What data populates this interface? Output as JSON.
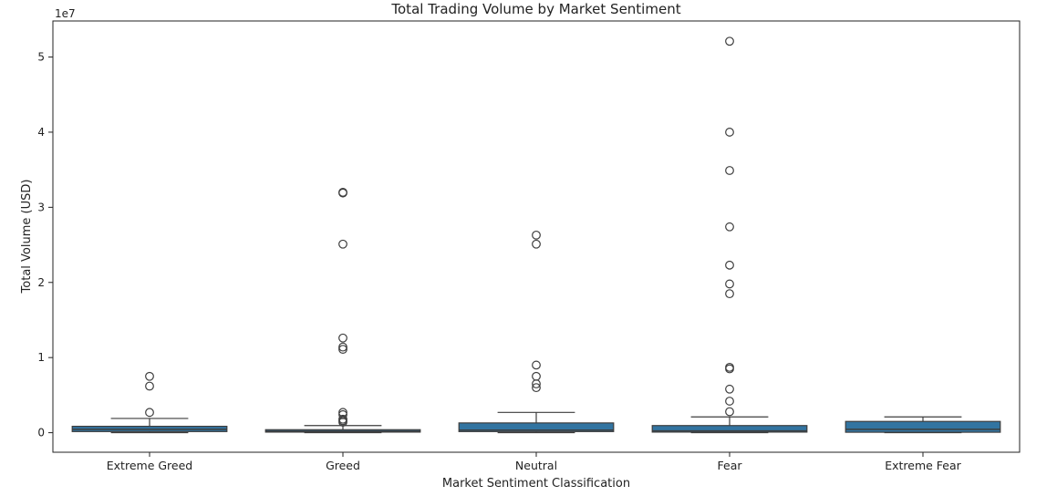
{
  "chart_data": {
    "type": "box",
    "title": "Total Trading Volume by Market Sentiment",
    "xlabel": "Market Sentiment Classification",
    "ylabel": "Total Volume (USD)",
    "y_offset_label": "1e7",
    "ylim": [
      -2600000,
      54800000
    ],
    "yticks": [
      0,
      10000000,
      20000000,
      30000000,
      40000000,
      50000000
    ],
    "ytick_labels": [
      "0",
      "1",
      "2",
      "3",
      "4",
      "5"
    ],
    "grid": false,
    "box_color": "#3274a1",
    "categories": [
      "Extreme Greed",
      "Greed",
      "Neutral",
      "Fear",
      "Extreme Fear"
    ],
    "boxes": [
      {
        "category": "Extreme Greed",
        "whisker_low": 0,
        "q1": 150000,
        "median": 450000,
        "q3": 850000,
        "whisker_high": 1900000,
        "outliers": [
          2700000,
          6200000,
          7500000
        ]
      },
      {
        "category": "Greed",
        "whisker_low": 0,
        "q1": 80000,
        "median": 200000,
        "q3": 400000,
        "whisker_high": 950000,
        "outliers": [
          1400000,
          1600000,
          1800000,
          2400000,
          2700000,
          11100000,
          11400000,
          12600000,
          25100000,
          31900000,
          32000000
        ]
      },
      {
        "category": "Neutral",
        "whisker_low": 0,
        "q1": 150000,
        "median": 350000,
        "q3": 1300000,
        "whisker_high": 2700000,
        "outliers": [
          6000000,
          6500000,
          7500000,
          9000000,
          25100000,
          26300000
        ]
      },
      {
        "category": "Fear",
        "whisker_low": 0,
        "q1": 80000,
        "median": 250000,
        "q3": 950000,
        "whisker_high": 2100000,
        "outliers": [
          2800000,
          4200000,
          5800000,
          8500000,
          8700000,
          18500000,
          19800000,
          22300000,
          27400000,
          34900000,
          40000000,
          52100000
        ]
      },
      {
        "category": "Extreme Fear",
        "whisker_low": 0,
        "q1": 60000,
        "median": 450000,
        "q3": 1500000,
        "whisker_high": 2100000,
        "outliers": []
      }
    ]
  }
}
